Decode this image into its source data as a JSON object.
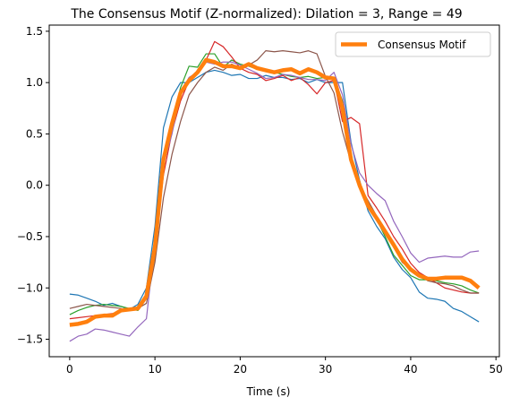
{
  "chart_data": {
    "type": "line",
    "title": "The Consensus Motif (Z-normalized): Dilation = 3, Range = 49",
    "xlabel": "Time (s)",
    "ylabel": "",
    "xlim": [
      -2.4,
      50.4
    ],
    "ylim": [
      -1.67,
      1.56
    ],
    "x_ticks": [
      0,
      10,
      20,
      30,
      40,
      50
    ],
    "y_ticks": [
      -1.5,
      -1.0,
      -0.5,
      0.0,
      0.5,
      1.0,
      1.5
    ],
    "x_tick_labels": [
      "0",
      "10",
      "20",
      "30",
      "40",
      "50"
    ],
    "y_tick_labels": [
      "−1.5",
      "−1.0",
      "−0.5",
      "0.0",
      "0.5",
      "1.0",
      "1.5"
    ],
    "grid": false,
    "legend": {
      "placement": "top-right",
      "entries": [
        "Consensus Motif"
      ]
    },
    "series": [
      {
        "color": "#1f77b4",
        "width": 1.2,
        "x": [
          0,
          1,
          2,
          3,
          4,
          5,
          6,
          7,
          8,
          9,
          10,
          11,
          12,
          13,
          14,
          15,
          16,
          17,
          18,
          19,
          20,
          21,
          22,
          23,
          24,
          25,
          26,
          27,
          28,
          29,
          30,
          31,
          32,
          33,
          34,
          35,
          36,
          37,
          38,
          39,
          40,
          41,
          42,
          43,
          44,
          45,
          46,
          47,
          48
        ],
        "values": [
          -1.06,
          -1.07,
          -1.1,
          -1.13,
          -1.17,
          -1.15,
          -1.18,
          -1.21,
          -1.16,
          -1.0,
          -0.4,
          0.56,
          0.86,
          1.0,
          1.0,
          1.05,
          1.1,
          1.12,
          1.1,
          1.07,
          1.08,
          1.04,
          1.04,
          1.07,
          1.05,
          1.05,
          1.03,
          1.04,
          1.0,
          1.03,
          1.0,
          1.0,
          1.0,
          0.42,
          0.05,
          -0.25,
          -0.4,
          -0.52,
          -0.7,
          -0.82,
          -0.9,
          -1.04,
          -1.1,
          -1.11,
          -1.13,
          -1.2,
          -1.23,
          -1.28,
          -1.33
        ]
      },
      {
        "color": "#2ca02c",
        "width": 1.2,
        "x": [
          0,
          1,
          2,
          3,
          4,
          5,
          6,
          7,
          8,
          9,
          10,
          11,
          12,
          13,
          14,
          15,
          16,
          17,
          18,
          19,
          20,
          21,
          22,
          23,
          24,
          25,
          26,
          27,
          28,
          29,
          30,
          31,
          32,
          33,
          34,
          35,
          36,
          37,
          38,
          39,
          40,
          41,
          42,
          43,
          44,
          45,
          46,
          47,
          48
        ],
        "values": [
          -1.26,
          -1.22,
          -1.19,
          -1.17,
          -1.16,
          -1.17,
          -1.18,
          -1.2,
          -1.22,
          -1.1,
          -0.7,
          0.2,
          0.6,
          0.95,
          1.16,
          1.15,
          1.28,
          1.28,
          1.15,
          1.22,
          1.18,
          1.16,
          1.13,
          1.13,
          1.1,
          1.08,
          1.06,
          1.05,
          1.06,
          1.04,
          1.05,
          1.05,
          0.82,
          0.22,
          -0.02,
          -0.2,
          -0.33,
          -0.5,
          -0.68,
          -0.78,
          -0.88,
          -0.92,
          -0.92,
          -0.93,
          -0.95,
          -0.96,
          -0.98,
          -1.02,
          -1.05
        ]
      },
      {
        "color": "#d62728",
        "width": 1.2,
        "x": [
          0,
          1,
          2,
          3,
          4,
          5,
          6,
          7,
          8,
          9,
          10,
          11,
          12,
          13,
          14,
          15,
          16,
          17,
          18,
          19,
          20,
          21,
          22,
          23,
          24,
          25,
          26,
          27,
          28,
          29,
          30,
          31,
          32,
          33,
          34,
          35,
          36,
          37,
          38,
          39,
          40,
          41,
          42,
          43,
          44,
          45,
          46,
          47,
          48
        ],
        "values": [
          -1.3,
          -1.29,
          -1.28,
          -1.27,
          -1.26,
          -1.25,
          -1.23,
          -1.22,
          -1.21,
          -1.05,
          -0.58,
          0.1,
          0.52,
          0.82,
          1.02,
          1.1,
          1.22,
          1.4,
          1.35,
          1.25,
          1.14,
          1.1,
          1.08,
          1.02,
          1.04,
          1.07,
          1.02,
          1.05,
          0.98,
          0.89,
          1.0,
          1.02,
          0.62,
          0.66,
          0.6,
          -0.1,
          -0.22,
          -0.35,
          -0.5,
          -0.62,
          -0.76,
          -0.85,
          -0.9,
          -0.95,
          -1.0,
          -1.02,
          -1.04,
          -1.05,
          -1.05
        ]
      },
      {
        "color": "#9467bd",
        "width": 1.2,
        "x": [
          0,
          1,
          2,
          3,
          4,
          5,
          6,
          7,
          8,
          9,
          10,
          11,
          12,
          13,
          14,
          15,
          16,
          17,
          18,
          19,
          20,
          21,
          22,
          23,
          24,
          25,
          26,
          27,
          28,
          29,
          30,
          31,
          32,
          33,
          34,
          35,
          36,
          37,
          38,
          39,
          40,
          41,
          42,
          43,
          44,
          45,
          46,
          47,
          48
        ],
        "values": [
          -1.52,
          -1.47,
          -1.45,
          -1.4,
          -1.41,
          -1.43,
          -1.45,
          -1.47,
          -1.38,
          -1.3,
          -0.55,
          0.2,
          0.5,
          0.9,
          1.05,
          1.1,
          1.2,
          1.18,
          1.2,
          1.2,
          1.17,
          1.13,
          1.09,
          1.04,
          1.05,
          1.08,
          1.07,
          1.05,
          1.03,
          1.03,
          1.02,
          1.1,
          0.88,
          0.4,
          0.12,
          0.0,
          -0.08,
          -0.15,
          -0.35,
          -0.5,
          -0.66,
          -0.75,
          -0.71,
          -0.7,
          -0.69,
          -0.7,
          -0.7,
          -0.65,
          -0.64
        ]
      },
      {
        "color": "#8c564b",
        "width": 1.2,
        "x": [
          0,
          1,
          2,
          3,
          4,
          5,
          6,
          7,
          8,
          9,
          10,
          11,
          12,
          13,
          14,
          15,
          16,
          17,
          18,
          19,
          20,
          21,
          22,
          23,
          24,
          25,
          26,
          27,
          28,
          29,
          30,
          31,
          32,
          33,
          34,
          35,
          36,
          37,
          38,
          39,
          40,
          41,
          42,
          43,
          44,
          45,
          46,
          47,
          48
        ],
        "values": [
          -1.2,
          -1.18,
          -1.16,
          -1.17,
          -1.18,
          -1.19,
          -1.2,
          -1.22,
          -1.2,
          -1.15,
          -0.75,
          -0.12,
          0.3,
          0.62,
          0.88,
          1.0,
          1.1,
          1.15,
          1.12,
          1.18,
          1.14,
          1.17,
          1.22,
          1.31,
          1.3,
          1.31,
          1.3,
          1.29,
          1.31,
          1.28,
          1.06,
          0.9,
          0.52,
          0.22,
          0.0,
          -0.15,
          -0.3,
          -0.45,
          -0.6,
          -0.75,
          -0.82,
          -0.87,
          -0.93,
          -0.95,
          -0.96,
          -0.98,
          -1.02,
          -1.05,
          -1.05
        ]
      },
      {
        "name": "Consensus Motif",
        "color": "#ff7f0e",
        "width": 4.5,
        "x": [
          0,
          1,
          2,
          3,
          4,
          5,
          6,
          7,
          8,
          9,
          10,
          11,
          12,
          13,
          14,
          15,
          16,
          17,
          18,
          19,
          20,
          21,
          22,
          23,
          24,
          25,
          26,
          27,
          28,
          29,
          30,
          31,
          32,
          33,
          34,
          35,
          36,
          37,
          38,
          39,
          40,
          41,
          42,
          43,
          44,
          45,
          46,
          47,
          48
        ],
        "values": [
          -1.36,
          -1.35,
          -1.33,
          -1.28,
          -1.27,
          -1.27,
          -1.22,
          -1.21,
          -1.2,
          -1.08,
          -0.6,
          0.25,
          0.6,
          0.9,
          1.02,
          1.1,
          1.22,
          1.2,
          1.16,
          1.16,
          1.14,
          1.18,
          1.14,
          1.12,
          1.1,
          1.12,
          1.13,
          1.09,
          1.13,
          1.1,
          1.05,
          1.04,
          0.75,
          0.25,
          0.0,
          -0.2,
          -0.32,
          -0.45,
          -0.58,
          -0.72,
          -0.82,
          -0.88,
          -0.91,
          -0.91,
          -0.9,
          -0.9,
          -0.9,
          -0.93,
          -1.0
        ]
      }
    ]
  }
}
